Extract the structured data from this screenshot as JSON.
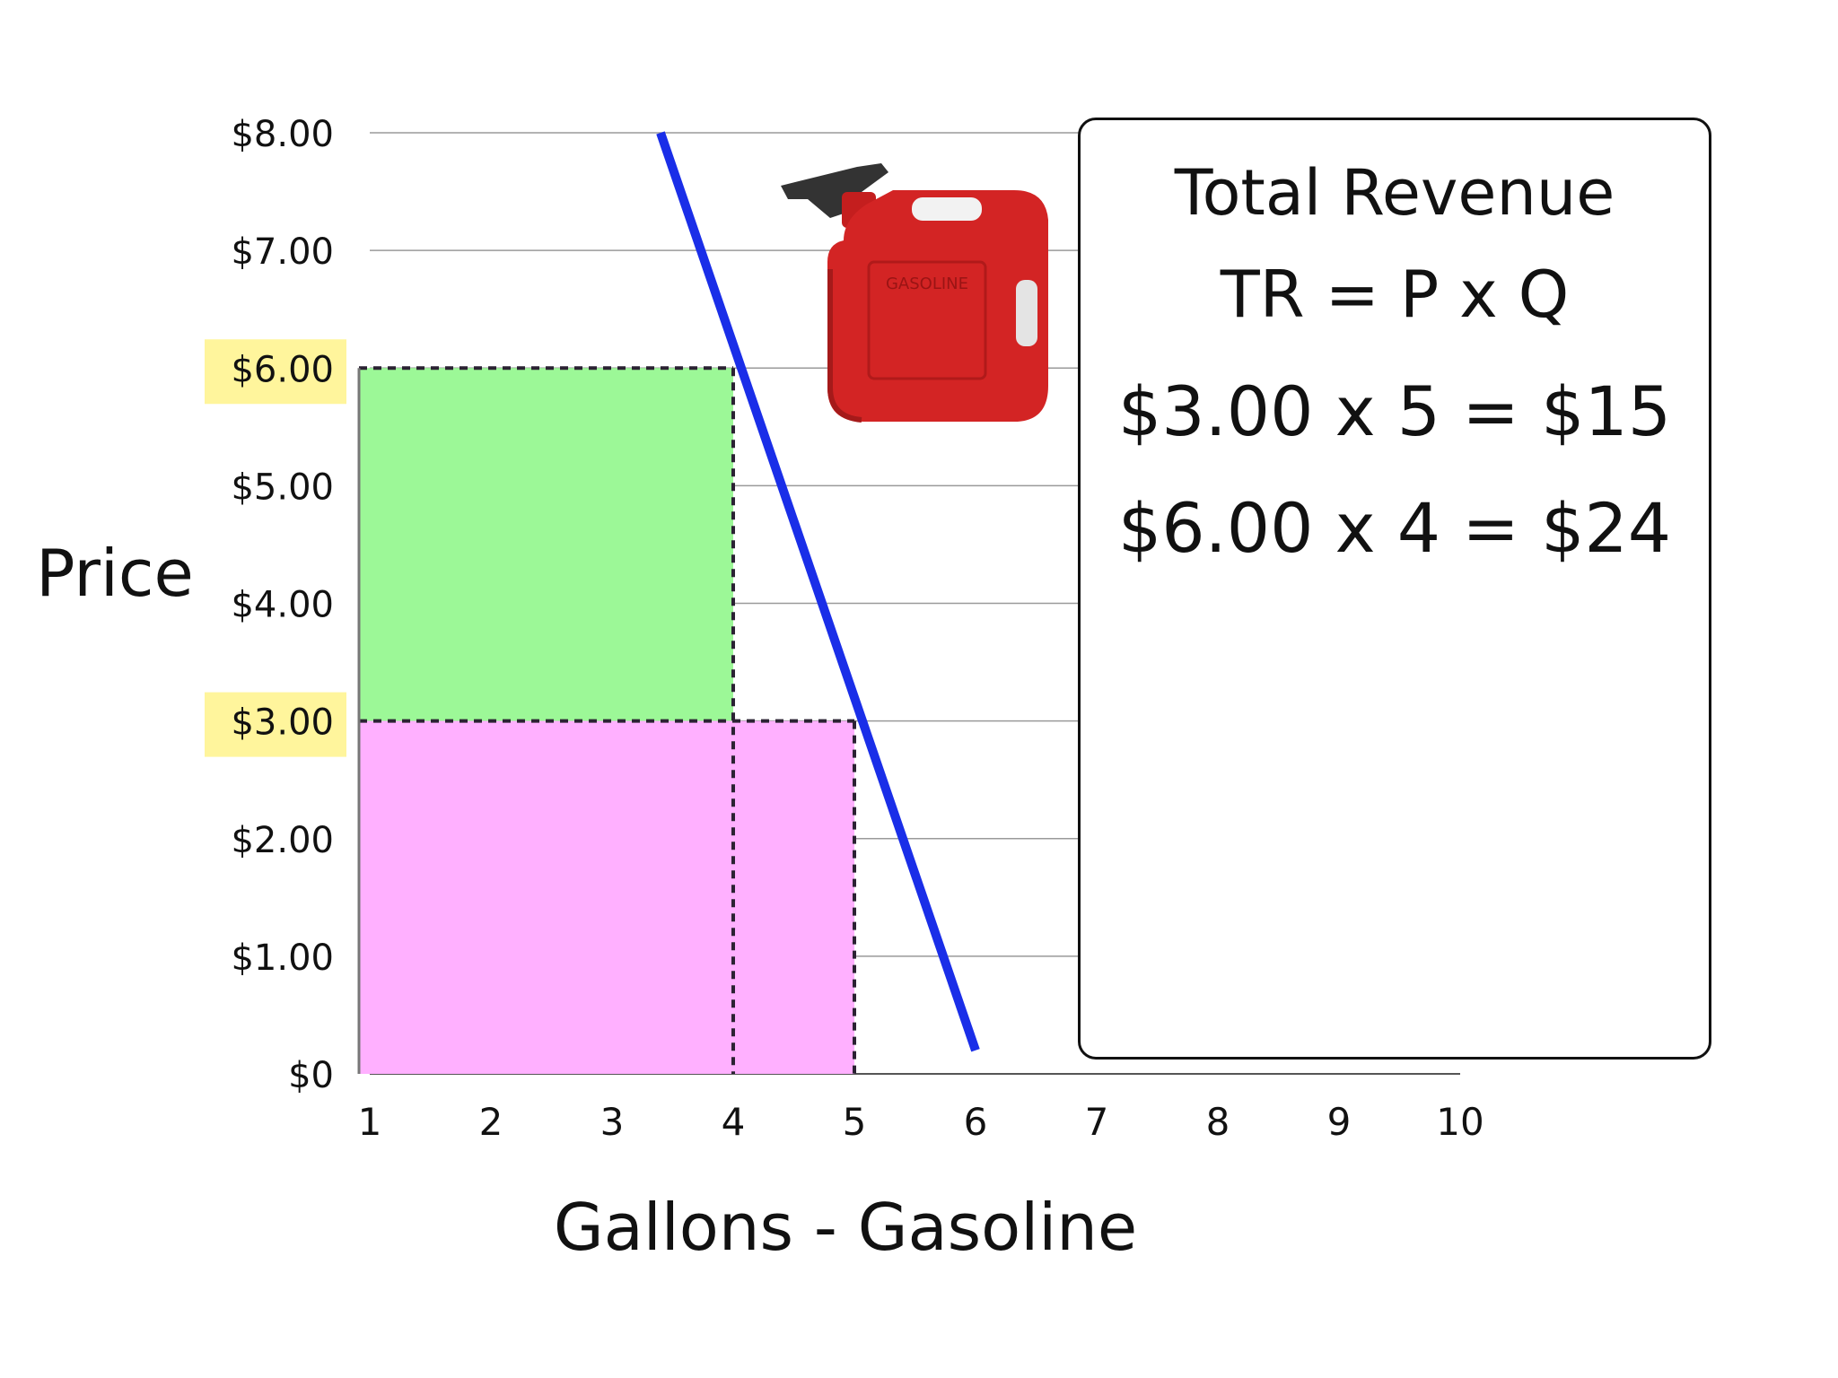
{
  "chart_data": {
    "type": "line",
    "xlabel": "Gallons - Gasoline",
    "ylabel": "Price",
    "x_ticks": [
      "1",
      "2",
      "3",
      "4",
      "5",
      "6",
      "7",
      "8",
      "9",
      "10"
    ],
    "y_ticks": [
      "$0",
      "$1.00",
      "$2.00",
      "$3.00",
      "$4.00",
      "$5.00",
      "$6.00",
      "$7.00",
      "$8.00"
    ],
    "xlim": [
      1,
      10
    ],
    "ylim": [
      0,
      8
    ],
    "grid": true,
    "series": [
      {
        "values": [
          [
            3.4,
            8
          ],
          [
            6,
            0.2
          ]
        ],
        "color": "#1a2ee8"
      }
    ],
    "highlighted_y_ticks": [
      "$3.00",
      "$6.00"
    ],
    "revenue_areas": [
      {
        "price": 6,
        "quantity": 4,
        "color": "#9cf897"
      },
      {
        "price": 3,
        "quantity": 4,
        "color": "#c1b4c3"
      },
      {
        "price": 3,
        "quantity": 5,
        "color": "#ffb0ff"
      }
    ]
  },
  "revenue_box": {
    "title": "Total Revenue",
    "formula": "TR = P x Q",
    "calc1": "$3.00 x 5 = $15",
    "calc2": "$6.00 x 4 = $24"
  },
  "image": {
    "icon": "gas-can-icon",
    "label": "GASOLINE"
  },
  "colors": {
    "highlight": "#fff59c",
    "demand_line": "#1a2ee8"
  }
}
